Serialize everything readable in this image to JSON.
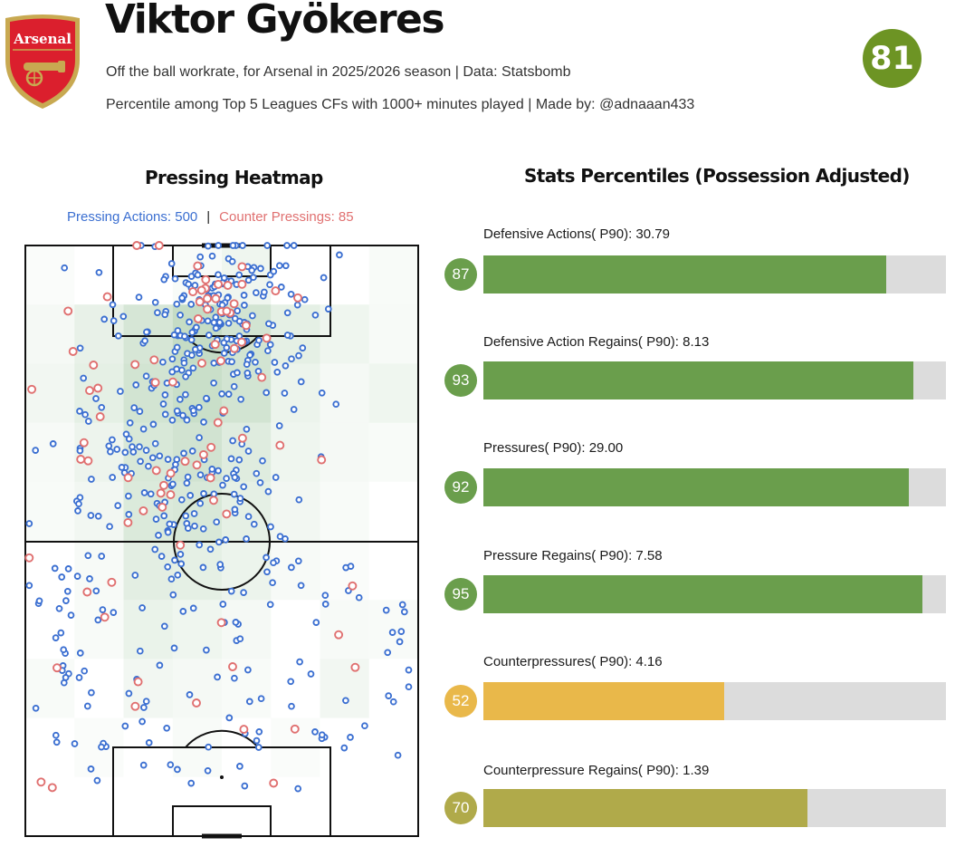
{
  "header": {
    "player_name": "Viktor Gyökeres",
    "subtitle_1": "Off the ball workrate, for Arsenal in 2025/2026 season | Data: Statsbomb",
    "subtitle_2": "Percentile among Top 5 Leagues CFs with 1000+ minutes played | Made by: @adnaaan433",
    "overall_score": "81",
    "badge_text": "Arsenal",
    "badge_icon": "arsenal-cannon-crest"
  },
  "colors": {
    "score_green": "#6d9424",
    "bar_green": "#6a9e4c",
    "bar_yellow": "#e9b84a",
    "bar_olive": "#b0aa4a",
    "track_grey": "#dcdcdc",
    "press_blue": "#3b6fd1",
    "counter_red": "#e07070",
    "heat_green": "#7fb27f"
  },
  "heatmap": {
    "title": "Pressing Heatmap",
    "legend_pressing": "Pressing Actions: 500",
    "legend_separator": "|",
    "legend_counter": "Counter Pressings: 85"
  },
  "chart_data": [
    {
      "type": "scatter",
      "title": "Pressing Heatmap",
      "series": [
        {
          "name": "Pressing Actions",
          "count": 500,
          "color": "#3b6fd1"
        },
        {
          "name": "Counter Pressings",
          "count": 85,
          "color": "#e07070"
        }
      ],
      "pitch_orientation": "vertical, attacking upward",
      "heat_cells": [
        [
          0,
          0,
          0.04
        ],
        [
          0,
          3,
          0.05
        ],
        [
          0,
          4,
          0.12
        ],
        [
          0,
          7,
          0.05
        ],
        [
          1,
          0,
          0.08
        ],
        [
          1,
          1,
          0.18
        ],
        [
          1,
          2,
          0.32
        ],
        [
          1,
          3,
          0.45
        ],
        [
          1,
          4,
          0.35
        ],
        [
          1,
          5,
          0.2
        ],
        [
          1,
          6,
          0.12
        ],
        [
          1,
          7,
          0.06
        ],
        [
          2,
          0,
          0.1
        ],
        [
          2,
          1,
          0.2
        ],
        [
          2,
          2,
          0.35
        ],
        [
          2,
          3,
          0.42
        ],
        [
          2,
          4,
          0.35
        ],
        [
          2,
          5,
          0.15
        ],
        [
          2,
          6,
          0.08
        ],
        [
          2,
          7,
          0.12
        ],
        [
          3,
          0,
          0.06
        ],
        [
          3,
          1,
          0.14
        ],
        [
          3,
          2,
          0.3
        ],
        [
          3,
          3,
          0.36
        ],
        [
          3,
          4,
          0.25
        ],
        [
          3,
          5,
          0.12
        ],
        [
          3,
          6,
          0.08
        ],
        [
          3,
          7,
          0.05
        ],
        [
          4,
          0,
          0.05
        ],
        [
          4,
          1,
          0.1
        ],
        [
          4,
          2,
          0.28
        ],
        [
          4,
          3,
          0.3
        ],
        [
          4,
          4,
          0.2
        ],
        [
          4,
          5,
          0.1
        ],
        [
          4,
          6,
          0.05
        ],
        [
          5,
          1,
          0.06
        ],
        [
          5,
          2,
          0.22
        ],
        [
          5,
          3,
          0.2
        ],
        [
          5,
          4,
          0.15
        ],
        [
          5,
          5,
          0.06
        ],
        [
          5,
          6,
          0.04
        ],
        [
          6,
          1,
          0.05
        ],
        [
          6,
          2,
          0.16
        ],
        [
          6,
          3,
          0.12
        ],
        [
          6,
          4,
          0.08
        ],
        [
          6,
          6,
          0.06
        ],
        [
          6,
          7,
          0.05
        ],
        [
          7,
          0,
          0.05
        ],
        [
          7,
          2,
          0.1
        ],
        [
          7,
          3,
          0.08
        ],
        [
          7,
          4,
          0.05
        ],
        [
          7,
          6,
          0.1
        ],
        [
          8,
          1,
          0.04
        ],
        [
          8,
          3,
          0.05
        ],
        [
          8,
          5,
          0.04
        ]
      ],
      "heat_grid": {
        "rows": 10,
        "cols": 8
      }
    },
    {
      "type": "bar",
      "title": "Stats Percentiles (Possession Adjusted)",
      "orientation": "horizontal",
      "xlim": [
        0,
        100
      ],
      "categories": [
        "Defensive Actions( P90): 30.79",
        "Defensive Action Regains( P90): 8.13",
        "Pressures( P90): 29.00",
        "Pressure Regains( P90): 7.58",
        "Counterpressures( P90): 4.16",
        "Counterpressure Regains( P90): 1.39"
      ],
      "values": [
        87,
        93,
        92,
        95,
        52,
        70
      ],
      "bar_colors": [
        "#6a9e4c",
        "#6a9e4c",
        "#6a9e4c",
        "#6a9e4c",
        "#e9b84a",
        "#b0aa4a"
      ]
    }
  ],
  "stats": {
    "title": "Stats Percentiles (Possession Adjusted)",
    "items": [
      {
        "label": "Defensive Actions( P90): 30.79",
        "percentile": "87",
        "color": "#6a9e4c"
      },
      {
        "label": "Defensive Action Regains( P90): 8.13",
        "percentile": "93",
        "color": "#6a9e4c"
      },
      {
        "label": "Pressures( P90): 29.00",
        "percentile": "92",
        "color": "#6a9e4c"
      },
      {
        "label": "Pressure Regains( P90): 7.58",
        "percentile": "95",
        "color": "#6a9e4c"
      },
      {
        "label": "Counterpressures( P90): 4.16",
        "percentile": "52",
        "color": "#e9b84a"
      },
      {
        "label": "Counterpressure Regains( P90): 1.39",
        "percentile": "70",
        "color": "#b0aa4a"
      }
    ]
  }
}
